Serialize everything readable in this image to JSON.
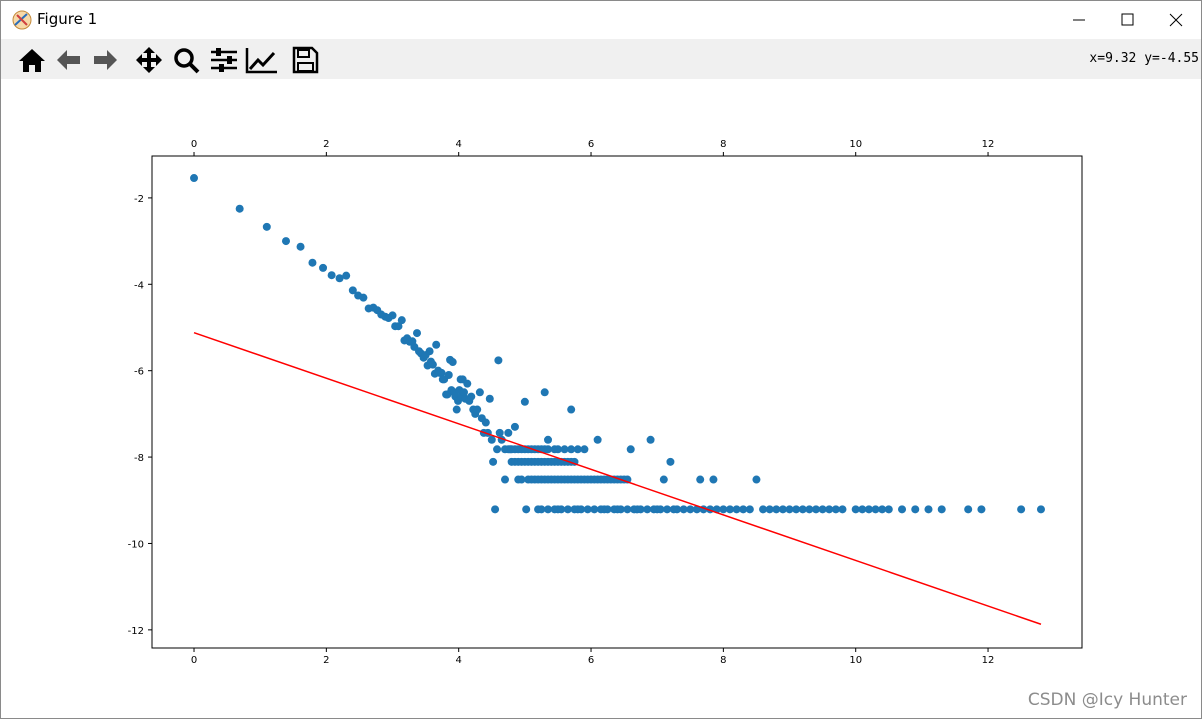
{
  "window": {
    "title": "Figure 1"
  },
  "toolbar": {
    "coords": "x=9.32 y=-4.55"
  },
  "watermark": "CSDN @Icy Hunter",
  "chart_data": [
    {
      "type": "scatter",
      "color": "#1f77b4",
      "xlim": [
        -0.635,
        13.42
      ],
      "ylim": [
        -12.42,
        -1.03
      ],
      "xticks": [
        0,
        2,
        4,
        6,
        8,
        10,
        12
      ],
      "yticks": [
        -2,
        -4,
        -6,
        -8,
        -10,
        -12
      ],
      "x": [
        0,
        0.69,
        1.1,
        1.39,
        1.61,
        1.79,
        1.95,
        2.08,
        2.2,
        2.3,
        2.4,
        2.48,
        2.56,
        2.64,
        2.71,
        2.77,
        2.83,
        2.89,
        2.94,
        3.0,
        3.04,
        3.09,
        3.14,
        3.18,
        3.22,
        3.26,
        3.3,
        3.33,
        3.37,
        3.4,
        3.43,
        3.47,
        3.5,
        3.53,
        3.56,
        3.58,
        3.61,
        3.64,
        3.66,
        3.69,
        3.71,
        3.74,
        3.76,
        3.78,
        3.81,
        3.83,
        3.85,
        3.87,
        3.89,
        3.91,
        3.93,
        3.95,
        3.97,
        3.99,
        4.01,
        4.03,
        4.04,
        4.06,
        4.08,
        4.1,
        4.13,
        4.16,
        4.19,
        4.22,
        4.25,
        4.28,
        4.32,
        4.35,
        4.38,
        4.41,
        4.44,
        4.47,
        4.5,
        4.52,
        4.55,
        4.58,
        4.6,
        4.62,
        4.65,
        4.7,
        4.75,
        4.78,
        4.8,
        4.85,
        4.9,
        4.95,
        5.0,
        5.02,
        5.05,
        5.1,
        5.15,
        5.2,
        5.25,
        5.3,
        5.35,
        5.4,
        5.45,
        5.5,
        5.55,
        5.6,
        5.7,
        5.75,
        5.8,
        5.9,
        6.0,
        6.1,
        6.2,
        6.3,
        6.4,
        6.5,
        6.6,
        6.7,
        6.9,
        7.0,
        7.1,
        7.2,
        7.3,
        7.5,
        7.65,
        7.8,
        7.85,
        8.0,
        8.2,
        8.5,
        8.6,
        8.9,
        9.2,
        9.5,
        9.8,
        10.1,
        10.4,
        10.7,
        10.9,
        11.1,
        11.3,
        11.7,
        11.9,
        12.5,
        12.8,
        5.25,
        5.35,
        5.45,
        5.55,
        5.65,
        5.75,
        5.85,
        5.95,
        6.05,
        6.15,
        6.25,
        6.35,
        6.45,
        6.55,
        6.65,
        6.75,
        6.85,
        6.95,
        7.05,
        7.15,
        7.25,
        7.4,
        7.6,
        7.7,
        7.9,
        8.1,
        8.3,
        8.4,
        8.7,
        8.8,
        9.0,
        9.1,
        9.3,
        9.4,
        9.6,
        9.7,
        10.0,
        10.2,
        10.3,
        10.5,
        4.95,
        5.05,
        5.1,
        5.2,
        5.25,
        5.3,
        5.35,
        5.45,
        5.5,
        5.55,
        5.65,
        5.7,
        5.75,
        5.8,
        5.85,
        5.9,
        5.95,
        6.05,
        6.1,
        6.15,
        6.2,
        6.25,
        6.35,
        6.4,
        6.45,
        6.55,
        4.85,
        4.9,
        4.95,
        5.0,
        5.1,
        5.15,
        5.2,
        5.3,
        5.35,
        5.4,
        5.45,
        5.5,
        5.6,
        5.65,
        5.7,
        4.7,
        4.75,
        4.8,
        4.85,
        4.9,
        5.0,
        5.05,
        5.15,
        5.2,
        5.25,
        5.3,
        5.35,
        5.5,
        5.6,
        5.7,
        5.8
      ],
      "values": [
        -1.54,
        -2.25,
        -2.67,
        -3.0,
        -3.13,
        -3.5,
        -3.62,
        -3.79,
        -3.86,
        -3.8,
        -4.14,
        -4.26,
        -4.31,
        -4.56,
        -4.54,
        -4.6,
        -4.7,
        -4.75,
        -4.78,
        -4.72,
        -4.97,
        -4.97,
        -4.83,
        -5.3,
        -5.25,
        -5.33,
        -5.32,
        -5.45,
        -5.13,
        -5.55,
        -5.6,
        -5.7,
        -5.64,
        -5.88,
        -5.55,
        -5.79,
        -5.86,
        -6.07,
        -5.4,
        -6.0,
        -6.05,
        -6.05,
        -6.2,
        -6.2,
        -6.55,
        -6.55,
        -6.1,
        -5.75,
        -6.45,
        -5.8,
        -6.5,
        -6.6,
        -6.9,
        -6.7,
        -6.45,
        -6.2,
        -6.6,
        -6.2,
        -6.5,
        -6.65,
        -6.3,
        -6.7,
        -6.6,
        -6.9,
        -7.0,
        -6.9,
        -6.5,
        -7.1,
        -7.44,
        -7.2,
        -7.44,
        -6.65,
        -7.6,
        -8.11,
        -9.21,
        -7.82,
        -5.76,
        -7.44,
        -7.6,
        -8.52,
        -7.44,
        -7.82,
        -8.11,
        -7.3,
        -8.52,
        -7.82,
        -6.72,
        -9.21,
        -8.11,
        -7.82,
        -8.52,
        -9.21,
        -8.11,
        -6.5,
        -7.6,
        -8.52,
        -7.82,
        -9.21,
        -8.11,
        -8.52,
        -6.9,
        -8.11,
        -9.21,
        -7.82,
        -8.52,
        -7.6,
        -9.21,
        -8.52,
        -9.21,
        -8.52,
        -7.82,
        -9.21,
        -7.6,
        -9.21,
        -8.52,
        -8.11,
        -9.21,
        -9.21,
        -8.52,
        -9.21,
        -8.52,
        -9.21,
        -9.21,
        -8.52,
        -9.21,
        -9.21,
        -9.21,
        -9.21,
        -9.21,
        -9.21,
        -9.21,
        -9.21,
        -9.21,
        -9.21,
        -9.21,
        -9.21,
        -9.21,
        -9.21,
        -9.21,
        -9.21,
        -9.21,
        -9.21,
        -9.21,
        -9.21,
        -9.21,
        -9.21,
        -9.21,
        -9.21,
        -9.21,
        -9.21,
        -9.21,
        -9.21,
        -9.21,
        -9.21,
        -9.21,
        -9.21,
        -9.21,
        -9.21,
        -9.21,
        -9.21,
        -9.21,
        -9.21,
        -9.21,
        -9.21,
        -9.21,
        -9.21,
        -9.21,
        -9.21,
        -9.21,
        -9.21,
        -9.21,
        -9.21,
        -9.21,
        -9.21,
        -9.21,
        -9.21,
        -9.21,
        -9.21,
        -9.21,
        -8.52,
        -8.52,
        -8.52,
        -8.52,
        -8.52,
        -8.52,
        -8.52,
        -8.52,
        -8.52,
        -8.52,
        -8.52,
        -8.52,
        -8.52,
        -8.52,
        -8.52,
        -8.52,
        -8.52,
        -8.52,
        -8.52,
        -8.52,
        -8.52,
        -8.52,
        -8.52,
        -8.52,
        -8.52,
        -8.52,
        -8.11,
        -8.11,
        -8.11,
        -8.11,
        -8.11,
        -8.11,
        -8.11,
        -8.11,
        -8.11,
        -8.11,
        -8.11,
        -8.11,
        -8.11,
        -8.11,
        -8.11,
        -7.82,
        -7.82,
        -7.82,
        -7.82,
        -7.82,
        -7.82,
        -7.82,
        -7.82,
        -7.82,
        -7.82,
        -7.82,
        -7.82,
        -7.82,
        -7.82,
        -7.82,
        -7.82
      ]
    },
    {
      "type": "line",
      "color": "#ff0000",
      "x": [
        0,
        12.8
      ],
      "values": [
        -5.12,
        -11.87
      ]
    }
  ]
}
